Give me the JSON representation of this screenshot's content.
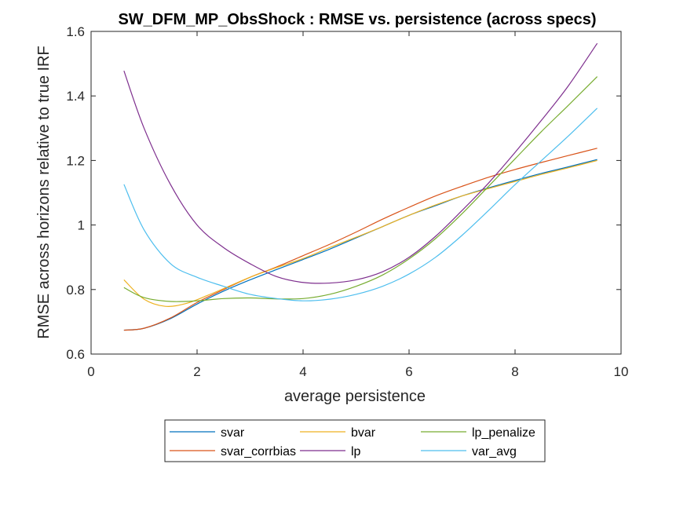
{
  "chart_data": {
    "type": "line",
    "title": "SW_DFM_MP_ObsShock : RMSE vs. persistence (across specs)",
    "xlabel": "average persistence",
    "ylabel": "RMSE across horizons relative to true IRF",
    "xlim": [
      0,
      10
    ],
    "ylim": [
      0.6,
      1.6
    ],
    "xticks": [
      0,
      2,
      4,
      6,
      8,
      10
    ],
    "xtick_labels": [
      "0",
      "2",
      "4",
      "6",
      "8",
      "10"
    ],
    "yticks": [
      0.6,
      0.8,
      1.0,
      1.2,
      1.4,
      1.6
    ],
    "ytick_labels": [
      "0.6",
      "0.8",
      "1",
      "1.2",
      "1.4",
      "1.6"
    ],
    "grid": false,
    "legend_position": "bottom-outside",
    "series": [
      {
        "name": "svar",
        "color": "#0072BD",
        "x": [
          0.62,
          1,
          1.5,
          2,
          2.5,
          3,
          3.5,
          4,
          4.5,
          5,
          5.5,
          6,
          6.5,
          7,
          7.5,
          8,
          8.5,
          9,
          9.55
        ],
        "y": [
          0.674,
          0.68,
          0.71,
          0.755,
          0.795,
          0.83,
          0.862,
          0.893,
          0.925,
          0.96,
          0.995,
          1.03,
          1.06,
          1.09,
          1.115,
          1.138,
          1.16,
          1.18,
          1.203
        ]
      },
      {
        "name": "svar_corrbias",
        "color": "#D95319",
        "x": [
          0.62,
          1,
          1.5,
          2,
          2.5,
          3,
          3.5,
          4,
          4.5,
          5,
          5.5,
          6,
          6.5,
          7,
          7.5,
          8,
          8.5,
          9,
          9.55
        ],
        "y": [
          0.674,
          0.68,
          0.712,
          0.76,
          0.8,
          0.838,
          0.87,
          0.905,
          0.94,
          0.978,
          1.018,
          1.055,
          1.09,
          1.12,
          1.148,
          1.172,
          1.194,
          1.215,
          1.238
        ]
      },
      {
        "name": "bvar",
        "color": "#EDB120",
        "x": [
          0.62,
          1,
          1.4,
          1.8,
          2.2,
          2.6,
          3,
          3.5,
          4,
          4.5,
          5,
          5.5,
          6,
          6.5,
          7,
          7.5,
          8,
          8.5,
          9,
          9.55
        ],
        "y": [
          0.83,
          0.77,
          0.748,
          0.757,
          0.782,
          0.81,
          0.838,
          0.868,
          0.896,
          0.93,
          0.962,
          0.995,
          1.03,
          1.062,
          1.09,
          1.113,
          1.135,
          1.157,
          1.177,
          1.2
        ]
      },
      {
        "name": "lp",
        "color": "#7E2F8E",
        "x": [
          0.62,
          1,
          1.5,
          2,
          2.5,
          3,
          3.5,
          4,
          4.5,
          5,
          5.5,
          6,
          6.5,
          7,
          7.5,
          8,
          8.5,
          9,
          9.55
        ],
        "y": [
          1.478,
          1.3,
          1.125,
          1.0,
          0.93,
          0.88,
          0.84,
          0.822,
          0.82,
          0.83,
          0.855,
          0.9,
          0.965,
          1.045,
          1.13,
          1.225,
          1.325,
          1.43,
          1.563
        ]
      },
      {
        "name": "lp_penalize",
        "color": "#77AC30",
        "x": [
          0.62,
          1,
          1.5,
          2,
          2.5,
          3,
          3.5,
          4,
          4.5,
          5,
          5.5,
          6,
          6.5,
          7,
          7.5,
          8,
          8.5,
          9,
          9.55
        ],
        "y": [
          0.806,
          0.775,
          0.763,
          0.765,
          0.772,
          0.774,
          0.771,
          0.772,
          0.785,
          0.81,
          0.845,
          0.895,
          0.958,
          1.035,
          1.12,
          1.205,
          1.29,
          1.37,
          1.46
        ]
      },
      {
        "name": "var_avg",
        "color": "#4DBEEE",
        "x": [
          0.62,
          1,
          1.5,
          2,
          2.5,
          3,
          3.5,
          4,
          4.5,
          5,
          5.5,
          6,
          6.5,
          7,
          7.5,
          8,
          8.5,
          9,
          9.55
        ],
        "y": [
          1.126,
          0.985,
          0.88,
          0.838,
          0.81,
          0.785,
          0.772,
          0.765,
          0.77,
          0.785,
          0.81,
          0.848,
          0.9,
          0.968,
          1.045,
          1.125,
          1.2,
          1.275,
          1.362
        ]
      }
    ],
    "legend_order": [
      "svar",
      "bvar",
      "lp_penalize",
      "svar_corrbias",
      "lp",
      "var_avg"
    ]
  }
}
